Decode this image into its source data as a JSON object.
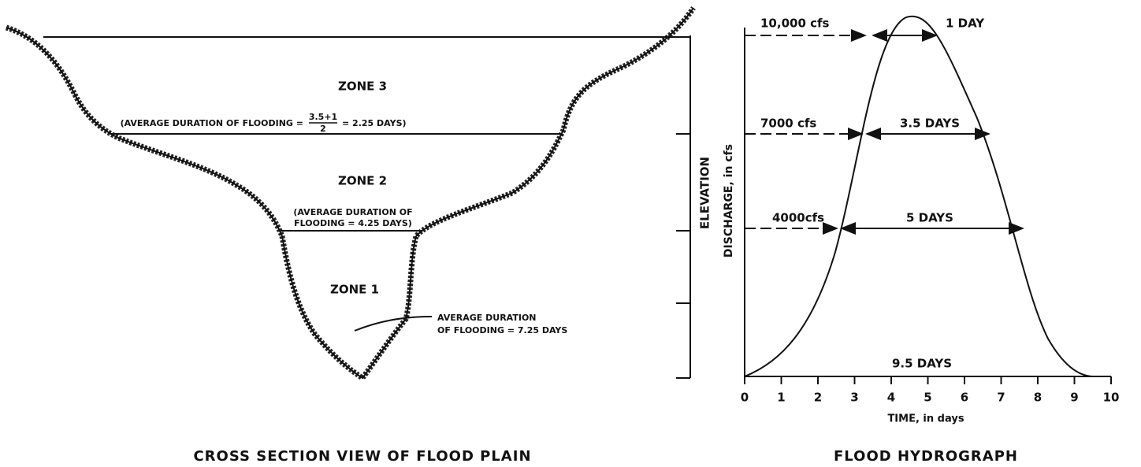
{
  "cross_section": {
    "title": "CROSS SECTION VIEW OF FLOOD PLAIN",
    "axis_label": "ELEVATION",
    "zones": [
      {
        "label": "ZONE 1",
        "note_lines": [
          "AVERAGE DURATION",
          "OF FLOODING = 7.25 DAYS"
        ]
      },
      {
        "label": "ZONE 2",
        "note_lines": [
          "(AVERAGE DURATION OF",
          "FLOODING = 4.25 DAYS)"
        ]
      },
      {
        "label": "ZONE 3",
        "note_prefix": "(AVERAGE DURATION OF FLOODING =",
        "numerator": "3.5+1",
        "denominator": "2",
        "note_suffix": "= 2.25 DAYS)"
      }
    ]
  },
  "hydrograph": {
    "title": "FLOOD HYDROGRAPH",
    "x_label": "TIME, in days",
    "y_label": "DISCHARGE, in cfs",
    "xticks": [
      "0",
      "1",
      "2",
      "3",
      "4",
      "5",
      "6",
      "7",
      "8",
      "9",
      "10"
    ],
    "levels": [
      {
        "discharge": "10,000 cfs",
        "duration": "1 DAY"
      },
      {
        "discharge": "7000 cfs",
        "duration": "3.5 DAYS"
      },
      {
        "discharge": "4000cfs",
        "duration": "5 DAYS"
      }
    ],
    "base_duration": "9.5 DAYS"
  }
}
